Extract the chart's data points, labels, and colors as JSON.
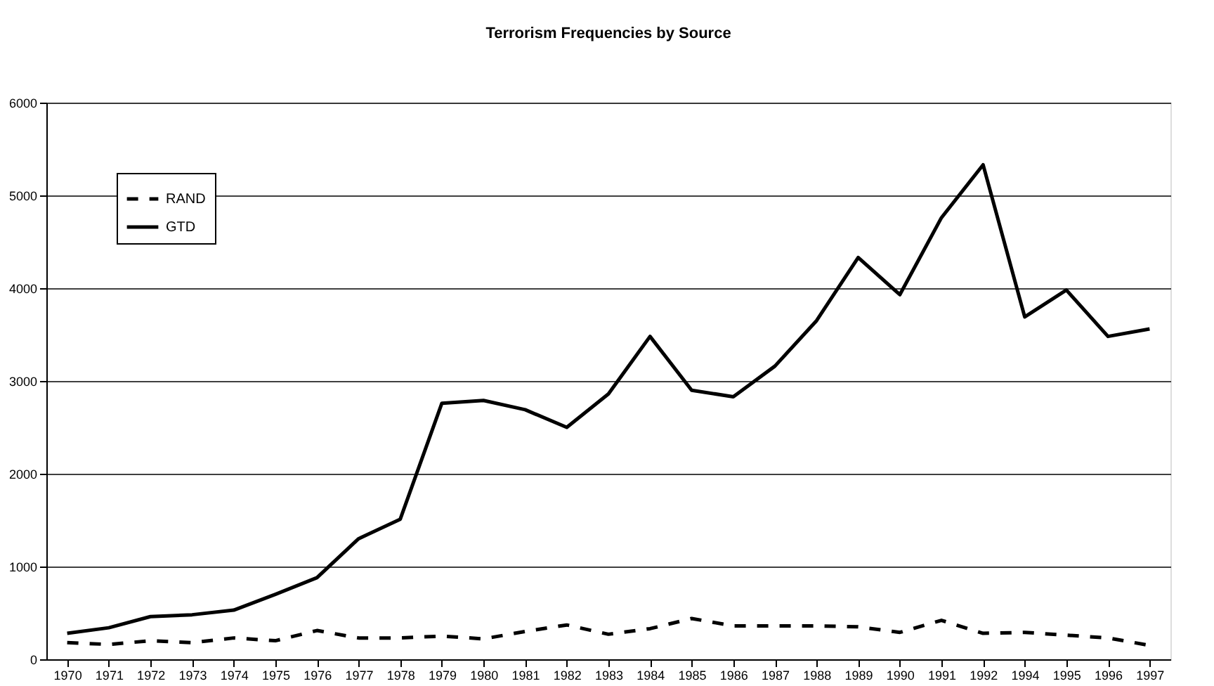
{
  "chart_data": {
    "type": "line",
    "title": "Terrorism Frequencies by Source",
    "categories": [
      "1970",
      "1971",
      "1972",
      "1973",
      "1974",
      "1975",
      "1976",
      "1977",
      "1978",
      "1979",
      "1980",
      "1981",
      "1982",
      "1983",
      "1984",
      "1985",
      "1986",
      "1987",
      "1988",
      "1989",
      "1990",
      "1991",
      "1992",
      "1994",
      "1995",
      "1996",
      "1997"
    ],
    "series": [
      {
        "name": "RAND",
        "color": "#000000",
        "line_style": "dashed",
        "values": [
          180,
          160,
          200,
          180,
          230,
          200,
          310,
          230,
          230,
          250,
          220,
          300,
          370,
          270,
          330,
          440,
          360,
          360,
          360,
          350,
          290,
          420,
          280,
          290,
          260,
          230,
          150
        ]
      },
      {
        "name": "GTD",
        "color": "#000000",
        "line_style": "solid",
        "values": [
          280,
          340,
          460,
          480,
          530,
          700,
          880,
          1300,
          1510,
          2760,
          2790,
          2690,
          2500,
          2860,
          3480,
          2900,
          2830,
          3160,
          3650,
          4330,
          3930,
          4760,
          5330,
          3690,
          3980,
          3480,
          3560
        ]
      }
    ],
    "ylim": [
      0,
      6000
    ],
    "yticks": [
      0,
      1000,
      2000,
      3000,
      4000,
      5000,
      6000
    ],
    "grid": "y",
    "legend": "top left",
    "marker": "none"
  }
}
